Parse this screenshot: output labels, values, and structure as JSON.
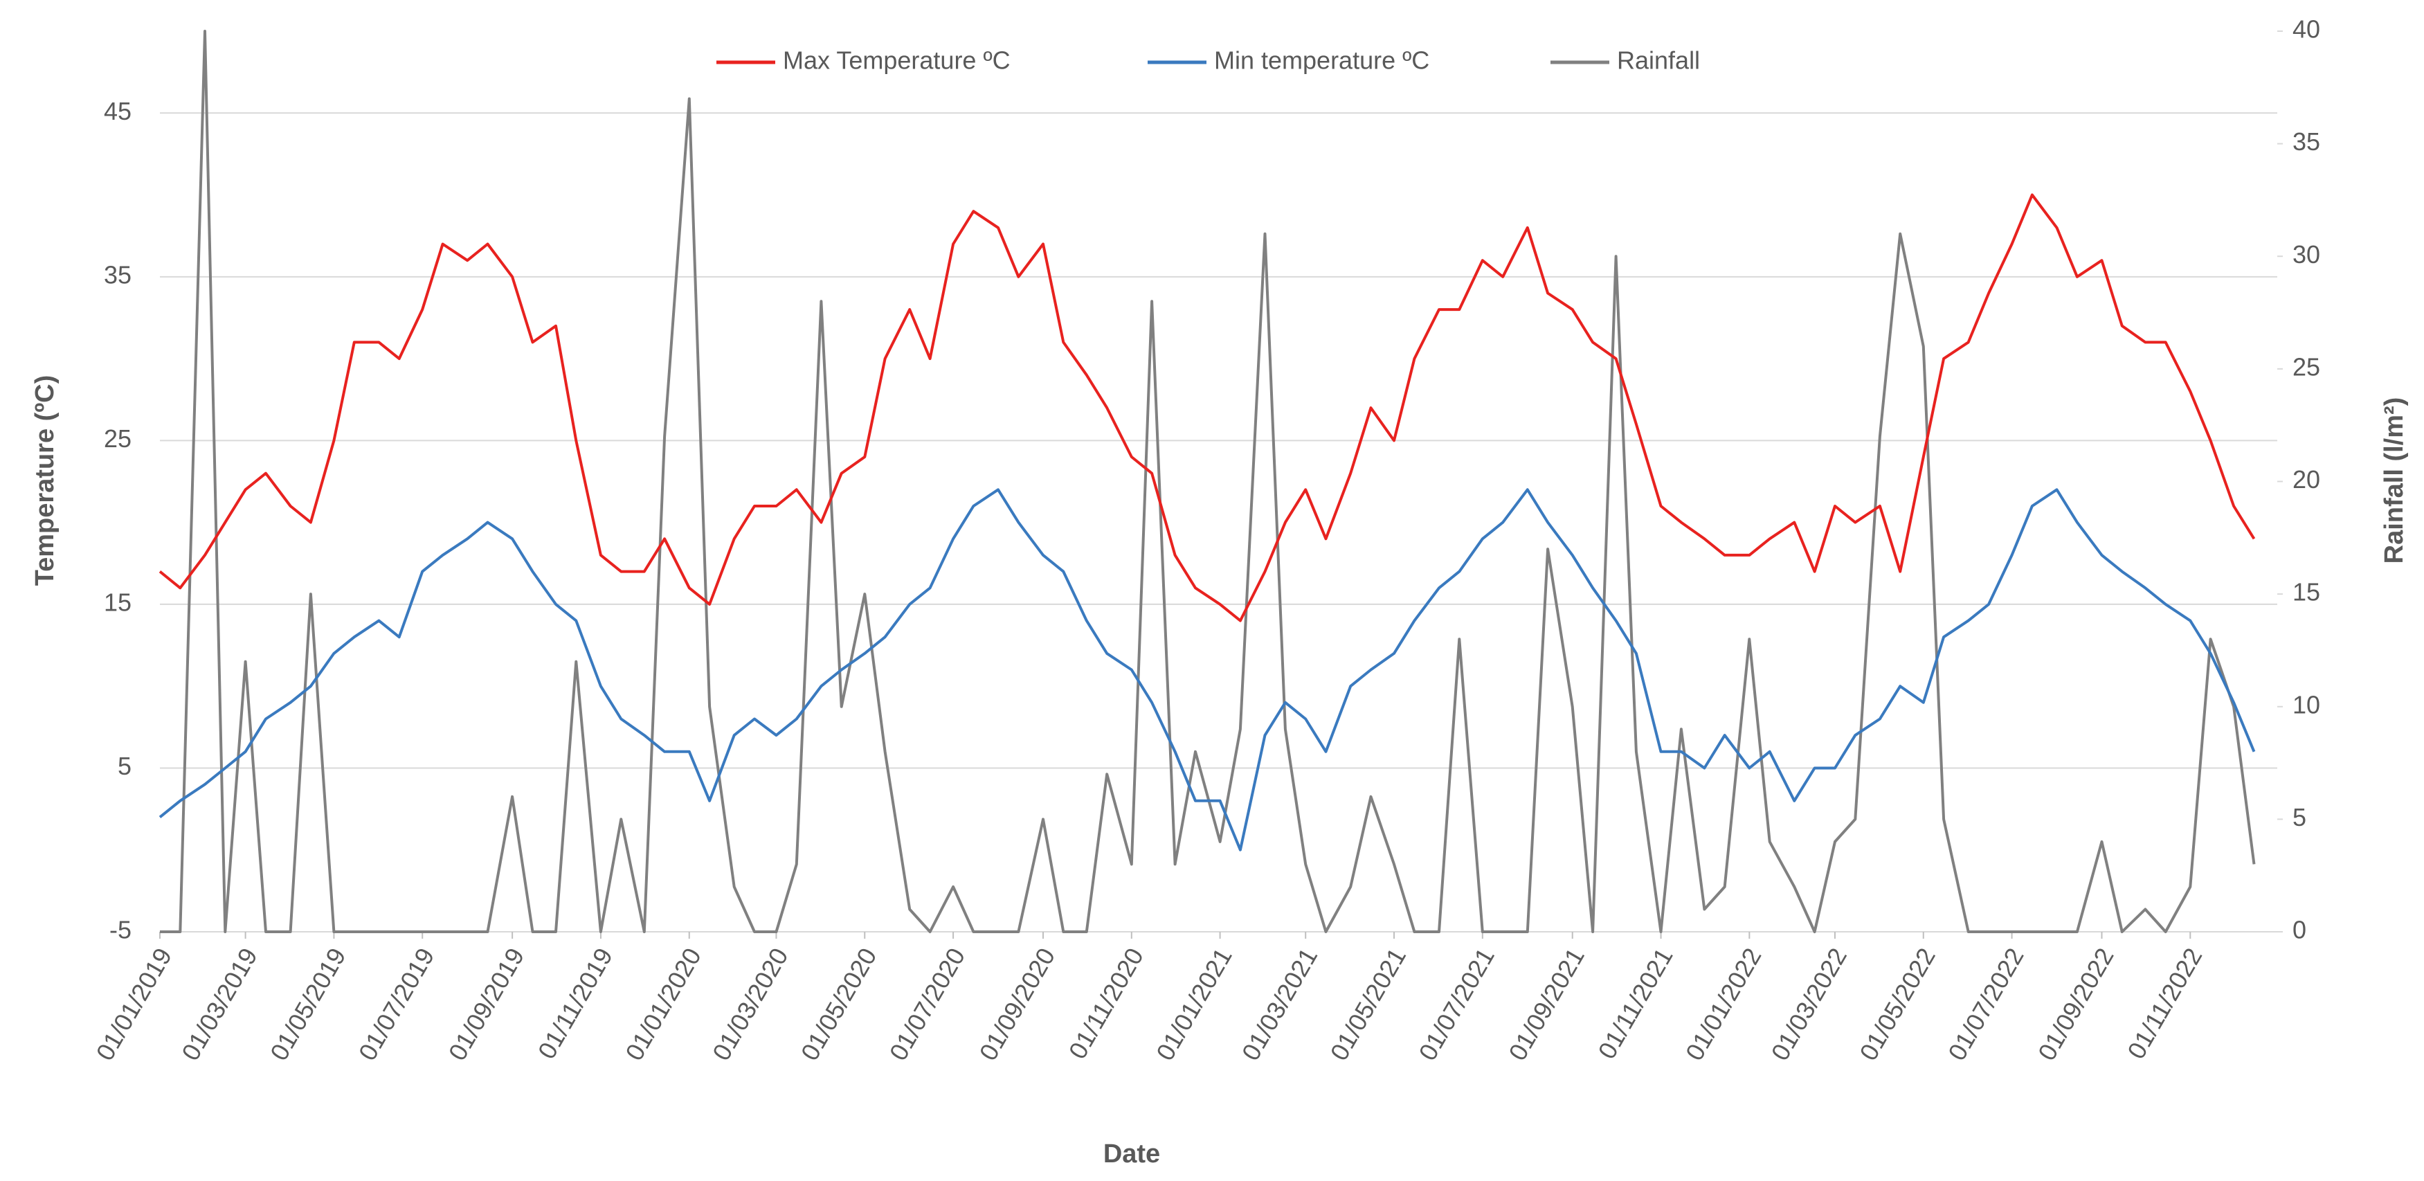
{
  "chart_data": {
    "type": "line",
    "xlabel": "Date",
    "ylabel": "Temperature (ºC)",
    "y2label": "Rainfall (l/m²)",
    "x": [
      "01/01/2019",
      "15/01/2019",
      "01/02/2019",
      "15/02/2019",
      "01/03/2019",
      "15/03/2019",
      "01/04/2019",
      "15/04/2019",
      "01/05/2019",
      "15/05/2019",
      "01/06/2019",
      "15/06/2019",
      "01/07/2019",
      "15/07/2019",
      "01/08/2019",
      "15/08/2019",
      "01/09/2019",
      "15/09/2019",
      "01/10/2019",
      "15/10/2019",
      "01/11/2019",
      "15/11/2019",
      "01/12/2019",
      "15/12/2019",
      "01/01/2020",
      "15/01/2020",
      "01/02/2020",
      "15/02/2020",
      "01/03/2020",
      "15/03/2020",
      "01/04/2020",
      "15/04/2020",
      "01/05/2020",
      "15/05/2020",
      "01/06/2020",
      "15/06/2020",
      "01/07/2020",
      "15/07/2020",
      "01/08/2020",
      "15/08/2020",
      "01/09/2020",
      "15/09/2020",
      "01/10/2020",
      "15/10/2020",
      "01/11/2020",
      "15/11/2020",
      "01/12/2020",
      "15/12/2020",
      "01/01/2021",
      "15/01/2021",
      "01/02/2021",
      "15/02/2021",
      "01/03/2021",
      "15/03/2021",
      "01/04/2021",
      "15/04/2021",
      "01/05/2021",
      "15/05/2021",
      "01/06/2021",
      "15/06/2021",
      "01/07/2021",
      "15/07/2021",
      "01/08/2021",
      "15/08/2021",
      "01/09/2021",
      "15/09/2021",
      "01/10/2021",
      "15/10/2021",
      "01/11/2021",
      "15/11/2021",
      "01/12/2021",
      "15/12/2021",
      "01/01/2022",
      "15/01/2022",
      "01/02/2022",
      "15/02/2022",
      "01/03/2022",
      "15/03/2022",
      "01/04/2022",
      "15/04/2022",
      "01/05/2022",
      "15/05/2022",
      "01/06/2022",
      "15/06/2022",
      "01/07/2022",
      "15/07/2022",
      "01/08/2022",
      "15/08/2022",
      "01/09/2022",
      "15/09/2022",
      "01/10/2022",
      "15/10/2022",
      "01/11/2022",
      "15/11/2022",
      "01/12/2022",
      "15/12/2022"
    ],
    "series": [
      {
        "name": "Max Temperature ºC",
        "color": "#e8221f",
        "values": [
          17,
          16,
          18,
          20,
          22,
          23,
          21,
          20,
          25,
          31,
          31,
          30,
          33,
          37,
          36,
          37,
          35,
          31,
          32,
          25,
          18,
          17,
          17,
          19,
          16,
          15,
          19,
          21,
          21,
          22,
          20,
          23,
          24,
          30,
          33,
          30,
          37,
          39,
          38,
          35,
          37,
          31,
          29,
          27,
          24,
          23,
          18,
          16,
          15,
          14,
          17,
          20,
          22,
          19,
          23,
          27,
          25,
          30,
          33,
          33,
          36,
          35,
          38,
          34,
          33,
          31,
          30,
          26,
          21,
          20,
          19,
          18,
          18,
          19,
          20,
          17,
          21,
          20,
          21,
          17,
          24,
          30,
          31,
          34,
          37,
          40,
          38,
          35,
          36,
          32,
          31,
          31,
          28,
          25,
          21,
          19
        ]
      },
      {
        "name": "Min temperature ºC",
        "color": "#3a7abf",
        "values": [
          2,
          3,
          4,
          5,
          6,
          8,
          9,
          10,
          12,
          13,
          14,
          13,
          17,
          18,
          19,
          20,
          19,
          17,
          15,
          14,
          10,
          8,
          7,
          6,
          6,
          3,
          7,
          8,
          7,
          8,
          10,
          11,
          12,
          13,
          15,
          16,
          19,
          21,
          22,
          20,
          18,
          17,
          14,
          12,
          11,
          9,
          6,
          3,
          3,
          0,
          7,
          9,
          8,
          6,
          10,
          11,
          12,
          14,
          16,
          17,
          19,
          20,
          22,
          20,
          18,
          16,
          14,
          12,
          6,
          6,
          5,
          7,
          5,
          6,
          3,
          5,
          5,
          7,
          8,
          10,
          9,
          13,
          14,
          15,
          18,
          21,
          22,
          20,
          18,
          17,
          16,
          15,
          14,
          12,
          9,
          6
        ]
      },
      {
        "name": "Rainfall",
        "color": "#808080",
        "axis": "y2",
        "values": [
          0,
          0,
          40,
          0,
          12,
          0,
          0,
          15,
          0,
          0,
          0,
          0,
          0,
          0,
          0,
          0,
          6,
          0,
          0,
          12,
          0,
          5,
          0,
          22,
          37,
          10,
          2,
          0,
          0,
          3,
          28,
          10,
          15,
          8,
          1,
          0,
          2,
          0,
          0,
          0,
          5,
          0,
          0,
          7,
          3,
          28,
          3,
          8,
          4,
          9,
          31,
          9,
          3,
          0,
          2,
          6,
          3,
          0,
          0,
          13,
          0,
          0,
          0,
          17,
          10,
          0,
          30,
          8,
          0,
          9,
          1,
          2,
          13,
          4,
          2,
          0,
          4,
          5,
          22,
          31,
          26,
          5,
          0,
          0,
          0,
          0,
          0,
          0,
          4,
          0,
          1,
          0,
          2,
          13,
          10,
          3
        ]
      }
    ],
    "xlim": [
      "01/01/2019",
      "31/12/2022"
    ],
    "xticks": [
      "01/01/2019",
      "01/03/2019",
      "01/05/2019",
      "01/07/2019",
      "01/09/2019",
      "01/11/2019",
      "01/01/2020",
      "01/03/2020",
      "01/05/2020",
      "01/07/2020",
      "01/09/2020",
      "01/11/2020",
      "01/01/2021",
      "01/03/2021",
      "01/05/2021",
      "01/07/2021",
      "01/09/2021",
      "01/11/2021",
      "01/01/2022",
      "01/03/2022",
      "01/05/2022",
      "01/07/2022",
      "01/09/2022",
      "01/11/2022"
    ],
    "ylim": [
      -5,
      50
    ],
    "yticks": [
      -5,
      5,
      15,
      25,
      35,
      45
    ],
    "y2lim": [
      0,
      40
    ],
    "y2ticks": [
      0,
      5,
      10,
      15,
      20,
      25,
      30,
      35,
      40
    ],
    "grid": true,
    "legend": "top"
  }
}
